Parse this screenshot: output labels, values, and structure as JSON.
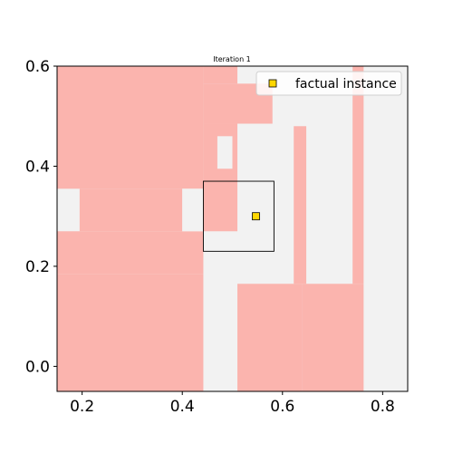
{
  "chart_data": {
    "type": "heatmap",
    "title": "Iteration 1",
    "xlabel": "",
    "ylabel": "",
    "xlim": [
      0.15,
      0.85
    ],
    "ylim": [
      -0.05,
      0.6
    ],
    "xticks": [
      0.2,
      0.4,
      0.6,
      0.8
    ],
    "yticks": [
      0.0,
      0.2,
      0.4,
      0.6
    ],
    "xtick_labels": [
      "0.2",
      "0.4",
      "0.6",
      "0.8"
    ],
    "ytick_labels": [
      "0.0",
      "0.2",
      "0.4",
      "0.6"
    ],
    "grid": false,
    "legend": {
      "position": "top-right",
      "entries": [
        "factual instance"
      ]
    },
    "background_color": "#f2f2f2",
    "region_color": "#fbb4ae",
    "regions": [
      {
        "x": [
          0.15,
          0.442
        ],
        "y": [
          0.355,
          0.6
        ]
      },
      {
        "x": [
          0.442,
          0.51
        ],
        "y": [
          0.565,
          0.6
        ]
      },
      {
        "x": [
          0.442,
          0.58
        ],
        "y": [
          0.485,
          0.565
        ]
      },
      {
        "x": [
          0.195,
          0.4
        ],
        "y": [
          0.27,
          0.355
        ]
      },
      {
        "x": [
          0.15,
          0.442
        ],
        "y": [
          0.185,
          0.27
        ]
      },
      {
        "x": [
          0.15,
          0.442
        ],
        "y": [
          -0.05,
          0.185
        ]
      },
      {
        "x": [
          0.442,
          0.51
        ],
        "y": [
          0.27,
          0.485
        ]
      },
      {
        "x": [
          0.51,
          0.64
        ],
        "y": [
          -0.05,
          0.165
        ]
      },
      {
        "x": [
          0.64,
          0.762
        ],
        "y": [
          -0.05,
          0.165
        ]
      },
      {
        "x": [
          0.74,
          0.762
        ],
        "y": [
          0.165,
          0.6
        ]
      },
      {
        "x": [
          0.6225,
          0.6475
        ],
        "y": [
          0.165,
          0.48
        ]
      }
    ],
    "gaps": [
      {
        "x": [
          0.47,
          0.5
        ],
        "y": [
          0.395,
          0.46
        ]
      },
      {
        "x": [
          0.4,
          0.442
        ],
        "y": [
          0.27,
          0.355
        ]
      }
    ],
    "box": {
      "x": [
        0.442,
        0.583
      ],
      "y": [
        0.23,
        0.37
      ]
    },
    "factual_instance": {
      "x": 0.547,
      "y": 0.3,
      "color": "#ffd700"
    }
  }
}
